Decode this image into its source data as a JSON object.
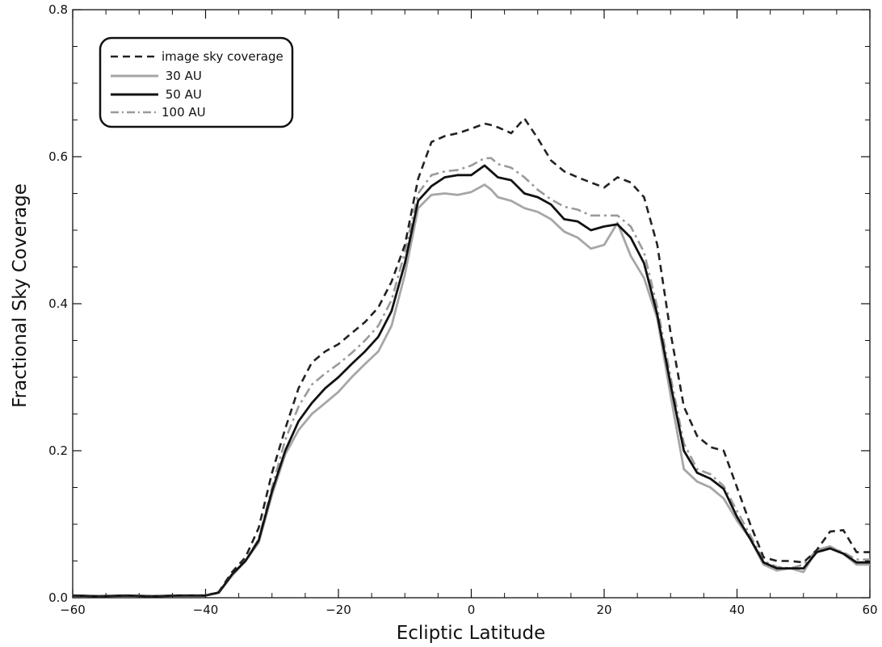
{
  "chart_data": {
    "type": "line",
    "xlabel": "Ecliptic Latitude",
    "ylabel": "Fractional Sky  Coverage",
    "xlim": [
      -60,
      60
    ],
    "ylim": [
      0,
      0.8
    ],
    "xticks": [
      -60,
      -40,
      -20,
      0,
      20,
      40,
      60
    ],
    "xtick_labels": [
      "−60",
      "−40",
      "−20",
      "0",
      "20",
      "40",
      "60"
    ],
    "yticks": [
      0,
      0.2,
      0.4,
      0.6,
      0.8
    ],
    "ytick_labels": [
      "0.0",
      "0.2",
      "0.4",
      "0.6",
      "0.8"
    ],
    "grid": false,
    "legend_position": "top-left",
    "x": [
      -60,
      -56,
      -52,
      -48,
      -44,
      -40,
      -38,
      -36,
      -34,
      -32,
      -30,
      -28,
      -26,
      -24,
      -22,
      -20,
      -18,
      -16,
      -14,
      -12,
      -10,
      -8,
      -6,
      -4,
      -2,
      0,
      2,
      3,
      4,
      6,
      8,
      10,
      12,
      14,
      16,
      18,
      20,
      22,
      24,
      26,
      28,
      30,
      32,
      34,
      36,
      38,
      40,
      42,
      44,
      46,
      48,
      50,
      52,
      54,
      56,
      58,
      60
    ],
    "series": [
      {
        "name": "image sky coverage",
        "style": "dashed",
        "color": "#222222",
        "values": [
          0.003,
          0.002,
          0.003,
          0.002,
          0.003,
          0.003,
          0.008,
          0.035,
          0.055,
          0.095,
          0.17,
          0.23,
          0.285,
          0.32,
          0.335,
          0.345,
          0.36,
          0.375,
          0.395,
          0.43,
          0.48,
          0.57,
          0.62,
          0.628,
          0.632,
          0.638,
          0.645,
          0.643,
          0.64,
          0.632,
          0.652,
          0.625,
          0.595,
          0.58,
          0.572,
          0.565,
          0.558,
          0.572,
          0.565,
          0.545,
          0.48,
          0.36,
          0.26,
          0.22,
          0.205,
          0.2,
          0.15,
          0.1,
          0.055,
          0.05,
          0.05,
          0.048,
          0.065,
          0.09,
          0.092,
          0.062,
          0.062
        ]
      },
      {
        "name": "30 AU",
        "style": "solid",
        "color": "#a6a6a6",
        "values": [
          0.003,
          0.002,
          0.003,
          0.002,
          0.003,
          0.003,
          0.007,
          0.03,
          0.05,
          0.075,
          0.14,
          0.195,
          0.228,
          0.25,
          0.265,
          0.28,
          0.3,
          0.318,
          0.335,
          0.37,
          0.44,
          0.53,
          0.548,
          0.55,
          0.548,
          0.552,
          0.562,
          0.555,
          0.545,
          0.54,
          0.53,
          0.525,
          0.515,
          0.498,
          0.49,
          0.475,
          0.48,
          0.51,
          0.465,
          0.435,
          0.38,
          0.275,
          0.175,
          0.158,
          0.15,
          0.135,
          0.105,
          0.08,
          0.045,
          0.037,
          0.04,
          0.035,
          0.065,
          0.07,
          0.06,
          0.045,
          0.045
        ]
      },
      {
        "name": "50 AU",
        "style": "solid",
        "color": "#111111",
        "values": [
          0.003,
          0.002,
          0.003,
          0.002,
          0.003,
          0.003,
          0.007,
          0.032,
          0.05,
          0.078,
          0.145,
          0.2,
          0.24,
          0.265,
          0.285,
          0.3,
          0.318,
          0.335,
          0.355,
          0.39,
          0.455,
          0.54,
          0.56,
          0.572,
          0.575,
          0.575,
          0.588,
          0.58,
          0.572,
          0.568,
          0.55,
          0.545,
          0.535,
          0.515,
          0.512,
          0.5,
          0.505,
          0.508,
          0.49,
          0.455,
          0.385,
          0.29,
          0.2,
          0.17,
          0.162,
          0.148,
          0.11,
          0.08,
          0.048,
          0.04,
          0.04,
          0.04,
          0.062,
          0.067,
          0.06,
          0.048,
          0.048
        ]
      },
      {
        "name": "100 AU",
        "style": "dash-dot",
        "color": "#9a9a9a",
        "values": [
          0.003,
          0.002,
          0.003,
          0.002,
          0.003,
          0.003,
          0.007,
          0.032,
          0.05,
          0.08,
          0.15,
          0.215,
          0.26,
          0.29,
          0.305,
          0.318,
          0.333,
          0.35,
          0.37,
          0.405,
          0.47,
          0.55,
          0.575,
          0.58,
          0.582,
          0.588,
          0.598,
          0.598,
          0.59,
          0.585,
          0.572,
          0.555,
          0.542,
          0.532,
          0.528,
          0.52,
          0.52,
          0.52,
          0.505,
          0.47,
          0.395,
          0.3,
          0.21,
          0.175,
          0.168,
          0.152,
          0.118,
          0.085,
          0.05,
          0.042,
          0.04,
          0.045,
          0.065,
          0.068,
          0.062,
          0.052,
          0.052
        ]
      }
    ],
    "legend": [
      {
        "label": "image sky coverage",
        "style": "dashed"
      },
      {
        "label": " 30 AU",
        "style": "solid-gray"
      },
      {
        "label": " 50 AU",
        "style": "solid-black"
      },
      {
        "label": "100 AU",
        "style": "dash-dot"
      }
    ]
  }
}
